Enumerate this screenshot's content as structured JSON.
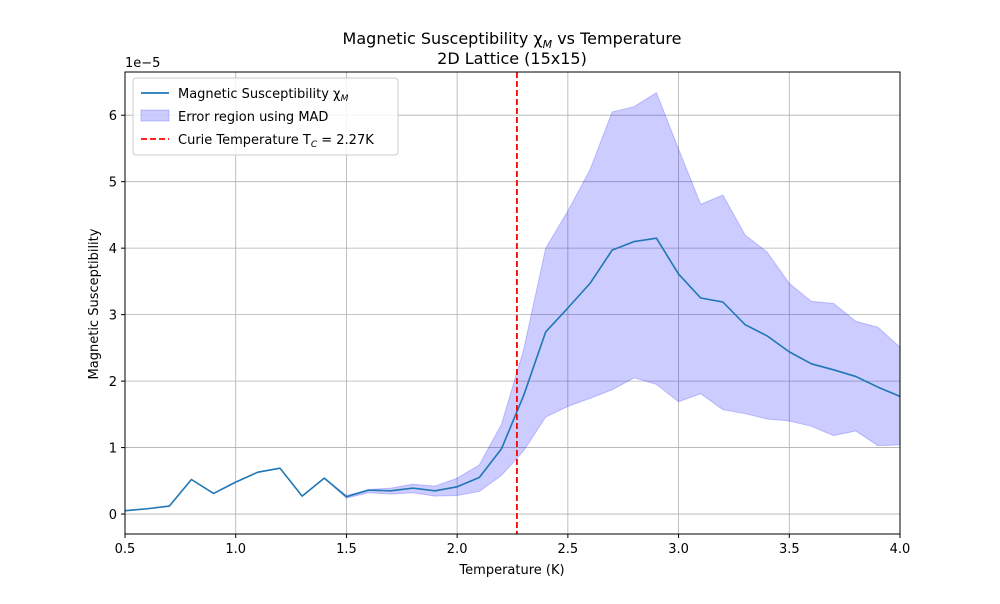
{
  "chart_data": {
    "type": "line",
    "title_line1": "Magnetic Susceptibility χ",
    "title_sub": "M",
    "title_line1_end": " vs Temperature",
    "title_line2": "2D Lattice (15x15)",
    "xlabel": "Temperature (K)",
    "ylabel": "Magnetic Susceptibility",
    "y_offset_label": "1e−5",
    "xlim": [
      0.5,
      4.0
    ],
    "ylim": [
      -0.3,
      6.65
    ],
    "xticks": [
      0.5,
      1.0,
      1.5,
      2.0,
      2.5,
      3.0,
      3.5,
      4.0
    ],
    "xtick_labels": [
      "0.5",
      "1.0",
      "1.5",
      "2.0",
      "2.5",
      "3.0",
      "3.5",
      "4.0"
    ],
    "yticks": [
      0,
      1,
      2,
      3,
      4,
      5,
      6
    ],
    "ytick_labels": [
      "0",
      "1",
      "2",
      "3",
      "4",
      "5",
      "6"
    ],
    "grid": true,
    "legend_position": "top-left",
    "colors": {
      "line": "#1f77b4",
      "band_fill": "#0000ff",
      "band_edge": "#0000ff",
      "curie": "#ff0000",
      "grid": "#b0b0b0"
    },
    "series": [
      {
        "name": "Magnetic Susceptibility χM",
        "x": [
          0.5,
          0.6,
          0.7,
          0.8,
          0.9,
          1.0,
          1.1,
          1.2,
          1.3,
          1.4,
          1.5,
          1.6,
          1.7,
          1.8,
          1.9,
          2.0,
          2.1,
          2.2,
          2.3,
          2.4,
          2.5,
          2.6,
          2.7,
          2.8,
          2.9,
          3.0,
          3.1,
          3.2,
          3.3,
          3.4,
          3.5,
          3.6,
          3.7,
          3.8,
          3.9,
          4.0
        ],
        "y": [
          0.05,
          0.08,
          0.12,
          0.52,
          0.31,
          0.48,
          0.63,
          0.69,
          0.27,
          0.54,
          0.26,
          0.36,
          0.35,
          0.39,
          0.35,
          0.41,
          0.55,
          0.98,
          1.78,
          2.74,
          3.1,
          3.47,
          3.97,
          4.1,
          4.15,
          3.61,
          3.25,
          3.19,
          2.85,
          2.68,
          2.44,
          2.26,
          2.17,
          2.07,
          1.91,
          1.77
        ]
      }
    ],
    "error_band": {
      "name": "Error region using MAD",
      "x": [
        0.5,
        0.6,
        0.7,
        0.8,
        0.9,
        1.0,
        1.1,
        1.2,
        1.3,
        1.4,
        1.5,
        1.6,
        1.7,
        1.8,
        1.9,
        2.0,
        2.1,
        2.2,
        2.3,
        2.4,
        2.5,
        2.6,
        2.7,
        2.8,
        2.9,
        3.0,
        3.1,
        3.2,
        3.3,
        3.4,
        3.5,
        3.6,
        3.7,
        3.8,
        3.9,
        4.0
      ],
      "lower": [
        0.05,
        0.08,
        0.12,
        0.52,
        0.31,
        0.48,
        0.63,
        0.69,
        0.27,
        0.54,
        0.24,
        0.32,
        0.3,
        0.32,
        0.27,
        0.28,
        0.34,
        0.58,
        0.95,
        1.46,
        1.62,
        1.74,
        1.87,
        2.05,
        1.95,
        1.69,
        1.81,
        1.57,
        1.51,
        1.43,
        1.4,
        1.32,
        1.18,
        1.25,
        1.03,
        1.04
      ],
      "upper": [
        0.05,
        0.08,
        0.12,
        0.52,
        0.31,
        0.48,
        0.63,
        0.69,
        0.27,
        0.54,
        0.28,
        0.37,
        0.39,
        0.45,
        0.42,
        0.54,
        0.74,
        1.35,
        2.47,
        4.0,
        4.56,
        5.18,
        6.05,
        6.13,
        6.34,
        5.49,
        4.66,
        4.8,
        4.2,
        3.94,
        3.47,
        3.2,
        3.17,
        2.9,
        2.81,
        2.51
      ]
    },
    "curie_line": {
      "name": "Curie Temperature TC = 2.27K",
      "x": 2.27
    },
    "legend": [
      {
        "key": "line",
        "text": "Magnetic Susceptibility χ",
        "sub": "M",
        "tail": ""
      },
      {
        "key": "band",
        "text": "Error region using MAD",
        "sub": "",
        "tail": ""
      },
      {
        "key": "curie",
        "text": "Curie Temperature T",
        "sub": "C",
        "tail": " = 2.27K"
      }
    ]
  }
}
